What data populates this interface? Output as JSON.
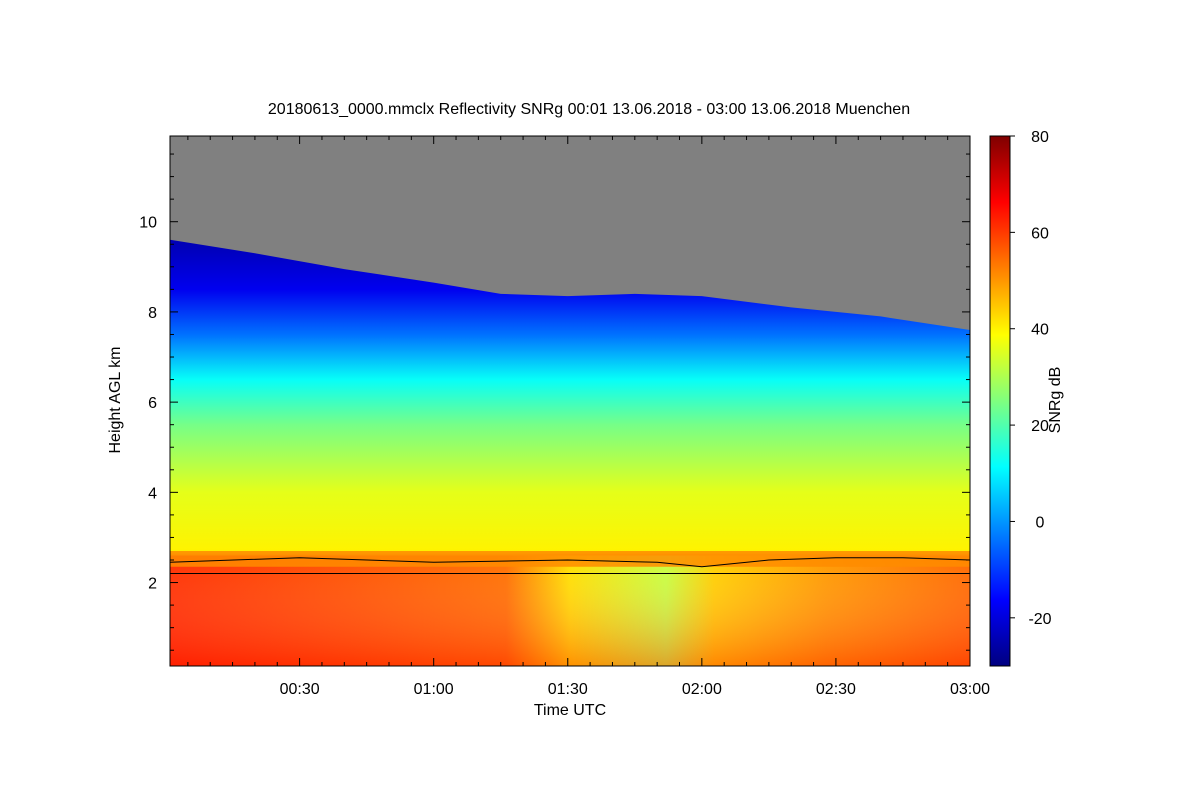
{
  "chart_data": {
    "type": "heatmap",
    "title": "20180613_0000.mmclx Reflectivity SNRg   00:01 13.06.2018 - 03:00 13.06.2018 Muenchen",
    "xlabel": "Time UTC",
    "ylabel": "Height AGL km",
    "colorbar_label": "SNRg dB",
    "x_range_minutes": [
      1,
      180
    ],
    "x_ticks": [
      {
        "minutes": 30,
        "label": "00:30"
      },
      {
        "minutes": 60,
        "label": "01:00"
      },
      {
        "minutes": 90,
        "label": "01:30"
      },
      {
        "minutes": 120,
        "label": "02:00"
      },
      {
        "minutes": 150,
        "label": "02:30"
      },
      {
        "minutes": 180,
        "label": "03:00"
      }
    ],
    "ylim_km": [
      0.15,
      11.9
    ],
    "y_ticks": [
      2,
      4,
      6,
      8,
      10
    ],
    "y_tick_labels": [
      "2",
      "4",
      "6",
      "8",
      "10"
    ],
    "colorbar_range_db": [
      -30,
      80
    ],
    "colorbar_ticks": [
      -20,
      0,
      20,
      40,
      60,
      80
    ],
    "colorbar_tick_labels": [
      "-20",
      "0",
      "20",
      "40",
      "60",
      "80"
    ],
    "no_signal_color": "#808080",
    "colormap": [
      "#00007f",
      "#0000ff",
      "#007fff",
      "#00ffff",
      "#7fff7f",
      "#ffff00",
      "#ff7f00",
      "#ff0000",
      "#7f0000"
    ],
    "reference_line_km": 2.2,
    "cloud_top_km": [
      {
        "minutes": 1,
        "km": 9.6
      },
      {
        "minutes": 20,
        "km": 9.3
      },
      {
        "minutes": 40,
        "km": 8.95
      },
      {
        "minutes": 60,
        "km": 8.65
      },
      {
        "minutes": 75,
        "km": 8.4
      },
      {
        "minutes": 90,
        "km": 8.35
      },
      {
        "minutes": 105,
        "km": 8.4
      },
      {
        "minutes": 120,
        "km": 8.35
      },
      {
        "minutes": 140,
        "km": 8.1
      },
      {
        "minutes": 160,
        "km": 7.9
      },
      {
        "minutes": 180,
        "km": 7.6
      }
    ],
    "melting_layer_km": [
      {
        "minutes": 1,
        "km": 2.45
      },
      {
        "minutes": 30,
        "km": 2.55
      },
      {
        "minutes": 60,
        "km": 2.45
      },
      {
        "minutes": 90,
        "km": 2.5
      },
      {
        "minutes": 110,
        "km": 2.45
      },
      {
        "minutes": 120,
        "km": 2.35
      },
      {
        "minutes": 135,
        "km": 2.5
      },
      {
        "minutes": 150,
        "km": 2.55
      },
      {
        "minutes": 165,
        "km": 2.55
      },
      {
        "minutes": 180,
        "km": 2.5
      }
    ],
    "snr_profile_db": [
      {
        "km": 0.2,
        "db": 64
      },
      {
        "km": 1.0,
        "db": 54
      },
      {
        "km": 2.0,
        "db": 50
      },
      {
        "km": 2.5,
        "db": 56
      },
      {
        "km": 2.7,
        "db": 40
      },
      {
        "km": 4.0,
        "db": 36
      },
      {
        "km": 5.5,
        "db": 24
      },
      {
        "km": 6.5,
        "db": 12
      },
      {
        "km": 7.5,
        "db": -4
      },
      {
        "km": 8.5,
        "db": -18
      },
      {
        "km": 9.5,
        "db": -24
      }
    ]
  }
}
